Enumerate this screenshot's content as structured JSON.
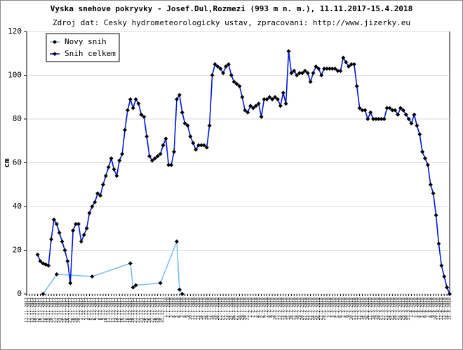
{
  "chart_data": {
    "type": "line",
    "title": "Vyska snehove pokryvky - Josef.Dul,Rozmezi (993 m n. m.), 11.11.2017-15.4.2018",
    "subtitle": "Zdroj dat: Cesky hydrometeorologicky ustav, zpracovani: http://www.jizerky.eu",
    "y_label": "cm",
    "categories": [
      "11.11.2017",
      "12.11.2017",
      "13.11.2017",
      "14.11.2017",
      "15.11.2017",
      "16.11.2017",
      "17.11.2017",
      "18.11.2017",
      "19.11.2017",
      "20.11.2017",
      "21.11.2017",
      "22.11.2017",
      "23.11.2017",
      "24.11.2017",
      "25.11.2017",
      "26.11.2017",
      "27.11.2017",
      "28.11.2017",
      "29.11.2017",
      "30.11.2017",
      "1.12.2017",
      "2.12.2017",
      "3.12.2017",
      "4.12.2017",
      "5.12.2017",
      "6.12.2017",
      "7.12.2017",
      "8.12.2017",
      "9.12.2017",
      "10.12.2017",
      "11.12.2017",
      "12.12.2017",
      "13.12.2017",
      "14.12.2017",
      "15.12.2017",
      "16.12.2017",
      "17.12.2017",
      "18.12.2017",
      "19.12.2017",
      "20.12.2017",
      "21.12.2017",
      "22.12.2017",
      "23.12.2017",
      "24.12.2017",
      "25.12.2017",
      "26.12.2017",
      "27.12.2017",
      "28.12.2017",
      "29.12.2017",
      "30.12.2017",
      "31.12.2017",
      "1.1.2018",
      "2.1.2018",
      "3.1.2018",
      "4.1.2018",
      "5.1.2018",
      "6.1.2018",
      "7.1.2018",
      "8.1.2018",
      "9.1.2018",
      "10.1.2018",
      "11.1.2018",
      "12.1.2018",
      "13.1.2018",
      "14.1.2018",
      "15.1.2018",
      "16.1.2018",
      "17.1.2018",
      "18.1.2018",
      "19.1.2018",
      "20.1.2018",
      "21.1.2018",
      "22.1.2018",
      "23.1.2018",
      "24.1.2018",
      "25.1.2018",
      "26.1.2018",
      "27.1.2018",
      "28.1.2018",
      "29.1.2018",
      "30.1.2018",
      "31.1.2018",
      "1.2.2018",
      "2.2.2018",
      "3.2.2018",
      "4.2.2018",
      "5.2.2018",
      "6.2.2018",
      "7.2.2018",
      "8.2.2018",
      "9.2.2018",
      "10.2.2018",
      "11.2.2018",
      "12.2.2018",
      "13.2.2018",
      "14.2.2018",
      "15.2.2018",
      "16.2.2018",
      "17.2.2018",
      "18.2.2018",
      "19.2.2018",
      "20.2.2018",
      "21.2.2018",
      "22.2.2018",
      "23.2.2018",
      "24.2.2018",
      "25.2.2018",
      "26.2.2018",
      "27.2.2018",
      "28.2.2018",
      "1.3.2018",
      "2.3.2018",
      "3.3.2018",
      "4.3.2018",
      "5.3.2018",
      "6.3.2018",
      "7.3.2018",
      "8.3.2018",
      "9.3.2018",
      "10.3.2018",
      "11.3.2018",
      "12.3.2018",
      "13.3.2018",
      "14.3.2018",
      "15.3.2018",
      "16.3.2018",
      "17.3.2018",
      "18.3.2018",
      "19.3.2018",
      "20.3.2018",
      "21.3.2018",
      "22.3.2018",
      "23.3.2018",
      "24.3.2018",
      "25.3.2018",
      "26.3.2018",
      "27.3.2018",
      "28.3.2018",
      "29.3.2018",
      "30.3.2018",
      "31.3.2018",
      "1.4.2018",
      "2.4.2018",
      "3.4.2018",
      "4.4.2018",
      "5.4.2018",
      "6.4.2018",
      "7.4.2018",
      "8.4.2018",
      "9.4.2018",
      "10.4.2018",
      "11.4.2018",
      "12.4.2018",
      "13.4.2018",
      "14.4.2018",
      "15.4.2018"
    ],
    "series": [
      {
        "name": "Novy snih",
        "color": "#7ec0e6",
        "x": [
          "17.11.2017",
          "22.11.2017",
          "5.12.2017",
          "19.12.2017",
          "20.12.2017",
          "21.12.2017",
          "30.12.2017",
          "5.1.2018",
          "6.1.2018",
          "7.1.2018"
        ],
        "values": [
          0,
          9,
          8,
          14,
          3,
          4,
          5,
          24,
          2,
          0
        ]
      },
      {
        "name": "Snih celkem",
        "color": "#0018d8",
        "values": [
          null,
          null,
          null,
          null,
          18,
          15,
          14,
          13.5,
          13,
          25,
          34,
          32,
          28,
          24,
          20,
          15,
          5,
          29,
          32,
          32,
          24,
          27,
          30,
          37,
          40,
          42,
          46,
          45,
          50,
          54,
          58,
          62,
          57,
          54,
          61,
          64,
          75,
          84,
          89,
          85,
          89,
          87,
          82,
          81,
          72,
          63,
          61,
          62,
          63,
          64,
          68,
          71,
          59,
          59,
          65,
          89,
          91,
          83,
          78,
          77,
          72,
          69,
          66,
          68,
          68,
          68,
          67,
          77,
          100,
          105,
          104,
          103,
          101,
          104,
          105,
          100,
          97,
          96,
          95,
          90,
          84,
          83,
          86,
          85,
          86,
          87,
          81,
          89,
          89,
          90,
          89,
          90,
          89,
          86,
          92,
          87,
          111,
          101,
          102,
          100,
          101,
          101,
          102,
          101,
          97,
          101,
          104,
          103,
          100,
          103,
          103,
          103,
          103,
          103,
          102,
          102,
          108,
          106,
          104,
          105,
          105,
          95,
          85,
          84,
          84,
          80,
          83,
          80,
          80,
          80,
          80,
          80,
          85,
          85,
          84,
          84,
          82,
          85,
          84,
          82,
          80,
          78,
          82,
          77,
          73,
          65,
          62,
          59,
          50,
          46,
          36,
          23,
          13,
          8,
          3,
          0
        ]
      }
    ],
    "ylim": [
      0,
      120
    ],
    "yticks": [
      0,
      20,
      40,
      60,
      80,
      100,
      120
    ],
    "grid": true,
    "legend": "upper left"
  }
}
